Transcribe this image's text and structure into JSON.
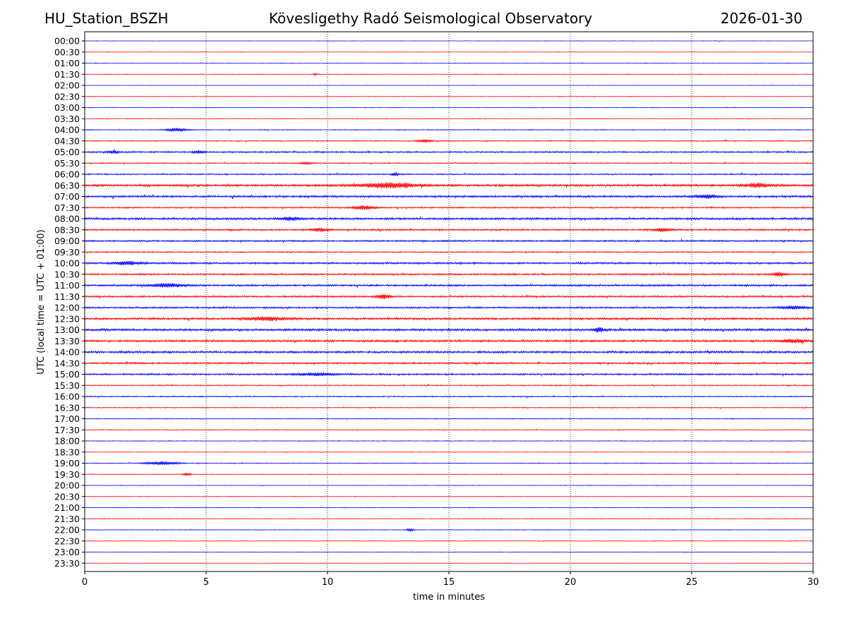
{
  "header": {
    "station": "HU_Station_BSZH",
    "title": "Kövesligethy Radó Seismological Observatory",
    "date": "2026-01-30"
  },
  "chart_data": {
    "type": "line",
    "title": "Kövesligethy Radó Seismological Observatory",
    "xlabel": "time in minutes",
    "ylabel": "UTC (local time = UTC + 01:00)",
    "xlim": [
      0,
      30
    ],
    "xticks": [
      0,
      5,
      10,
      15,
      20,
      25,
      30
    ],
    "grid": "vertical dotted at every 5 minutes",
    "trace_colors": [
      "#0000ff",
      "#ff0000"
    ],
    "rows": [
      "00:00",
      "00:30",
      "01:00",
      "01:30",
      "02:00",
      "02:30",
      "03:00",
      "03:30",
      "04:00",
      "04:30",
      "05:00",
      "05:30",
      "06:00",
      "06:30",
      "07:00",
      "07:30",
      "08:00",
      "08:30",
      "09:00",
      "09:30",
      "10:00",
      "10:30",
      "11:00",
      "11:30",
      "12:00",
      "12:30",
      "13:00",
      "13:30",
      "14:00",
      "14:30",
      "15:00",
      "15:30",
      "16:00",
      "16:30",
      "17:00",
      "17:30",
      "18:00",
      "18:30",
      "19:00",
      "19:30",
      "20:00",
      "20:30",
      "21:00",
      "21:30",
      "22:00",
      "22:30",
      "23:00",
      "23:30"
    ],
    "noise_level": [
      0.25,
      0.25,
      0.3,
      0.3,
      0.25,
      0.3,
      0.3,
      0.3,
      0.45,
      0.55,
      0.8,
      0.6,
      0.7,
      1.2,
      1.1,
      0.75,
      1.1,
      0.9,
      0.85,
      0.6,
      1.0,
      0.9,
      1.0,
      0.9,
      0.9,
      1.1,
      1.2,
      1.1,
      1.1,
      0.95,
      0.9,
      0.6,
      0.6,
      0.5,
      0.45,
      0.4,
      0.35,
      0.3,
      0.4,
      0.35,
      0.3,
      0.3,
      0.3,
      0.3,
      0.35,
      0.3,
      0.3,
      0.25
    ],
    "events": [
      {
        "row": "01:30",
        "minute": 9.5,
        "amplitude": 2.0,
        "width": 0.1
      },
      {
        "row": "04:00",
        "minute": 3.8,
        "amplitude": 2.5,
        "width": 0.6
      },
      {
        "row": "04:30",
        "minute": 14.0,
        "amplitude": 2.0,
        "width": 0.4
      },
      {
        "row": "05:00",
        "minute": 1.2,
        "amplitude": 2.0,
        "width": 0.3
      },
      {
        "row": "05:00",
        "minute": 4.7,
        "amplitude": 2.2,
        "width": 0.3
      },
      {
        "row": "05:30",
        "minute": 9.1,
        "amplitude": 1.6,
        "width": 0.3
      },
      {
        "row": "06:00",
        "minute": 12.8,
        "amplitude": 2.2,
        "width": 0.2
      },
      {
        "row": "06:30",
        "minute": 12.5,
        "amplitude": 3.5,
        "width": 1.6
      },
      {
        "row": "06:30",
        "minute": 27.7,
        "amplitude": 2.4,
        "width": 0.8
      },
      {
        "row": "07:00",
        "minute": 25.6,
        "amplitude": 2.5,
        "width": 0.6
      },
      {
        "row": "07:30",
        "minute": 11.5,
        "amplitude": 2.8,
        "width": 0.6
      },
      {
        "row": "08:00",
        "minute": 8.5,
        "amplitude": 2.0,
        "width": 0.6
      },
      {
        "row": "08:30",
        "minute": 9.7,
        "amplitude": 2.2,
        "width": 0.5
      },
      {
        "row": "08:30",
        "minute": 23.8,
        "amplitude": 2.0,
        "width": 0.6
      },
      {
        "row": "10:00",
        "minute": 1.8,
        "amplitude": 2.2,
        "width": 0.8
      },
      {
        "row": "10:30",
        "minute": 28.6,
        "amplitude": 2.6,
        "width": 0.4
      },
      {
        "row": "11:00",
        "minute": 3.4,
        "amplitude": 2.4,
        "width": 1.0
      },
      {
        "row": "11:30",
        "minute": 12.3,
        "amplitude": 3.0,
        "width": 0.4
      },
      {
        "row": "12:00",
        "minute": 29.2,
        "amplitude": 2.0,
        "width": 0.8
      },
      {
        "row": "12:30",
        "minute": 7.5,
        "amplitude": 2.2,
        "width": 1.2
      },
      {
        "row": "13:00",
        "minute": 21.2,
        "amplitude": 3.0,
        "width": 0.3
      },
      {
        "row": "13:30",
        "minute": 29.2,
        "amplitude": 2.2,
        "width": 0.8
      },
      {
        "row": "15:00",
        "minute": 9.5,
        "amplitude": 1.8,
        "width": 1.2
      },
      {
        "row": "19:00",
        "minute": 3.2,
        "amplitude": 2.2,
        "width": 1.0
      },
      {
        "row": "19:30",
        "minute": 4.2,
        "amplitude": 2.2,
        "width": 0.2
      },
      {
        "row": "22:00",
        "minute": 13.4,
        "amplitude": 2.0,
        "width": 0.2
      }
    ]
  }
}
